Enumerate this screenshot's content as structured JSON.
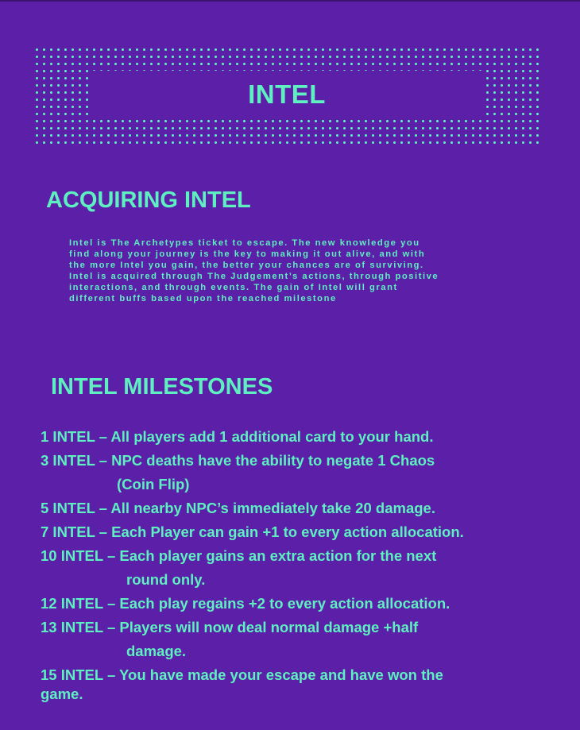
{
  "page": {
    "title": "INTEL",
    "colors": {
      "background": "#5b1fa8",
      "accent": "#5ef0c0"
    }
  },
  "acquiring": {
    "heading": "ACQUIRING INTEL",
    "lines": [
      "Intel is The Archetypes ticket to escape. The new knowledge you",
      "find along your journey is the key to making it out alive, and with",
      "the more Intel you gain, the better your chances are of surviving.",
      "Intel is acquired through The Judgement’s actions, through positive",
      "interactions, and through events. The gain of Intel will grant",
      "different buffs based upon the reached milestone"
    ]
  },
  "milestones": {
    "heading": "INTEL MILESTONES",
    "items": [
      {
        "lines": [
          "1 INTEL – All players add 1 additional card to your hand."
        ]
      },
      {
        "lines": [
          "3 INTEL – NPC deaths have the ability to negate 1 Chaos",
          "(Coin Flip)"
        ]
      },
      {
        "lines": [
          "5 INTEL – All nearby NPC’s immediately take 20 damage."
        ]
      },
      {
        "lines": [
          "7 INTEL – Each Player can gain +1 to every action allocation."
        ]
      },
      {
        "lines": [
          "10 INTEL – Each player gains an extra action for the next",
          "round only."
        ]
      },
      {
        "lines": [
          "12 INTEL – Each play regains +2 to every action allocation."
        ]
      },
      {
        "lines": [
          "13 INTEL – Players will now deal normal damage +half",
          "damage."
        ]
      },
      {
        "lines": [
          "15 INTEL – You have made your escape and have won the",
          "game."
        ]
      }
    ]
  }
}
